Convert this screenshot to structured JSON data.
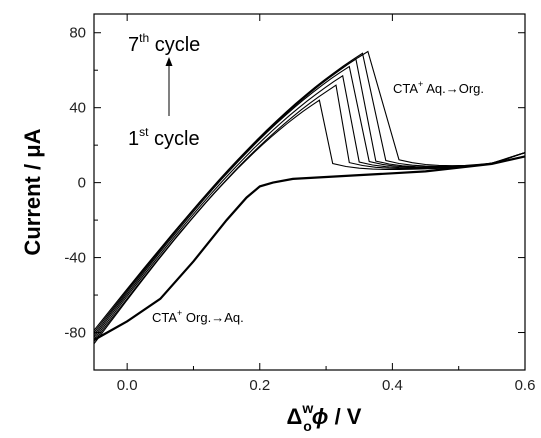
{
  "chart_data": {
    "type": "line",
    "xlabel": {
      "delta": "Δ",
      "sup": "w",
      "sub": "o",
      "phi": "ϕ",
      "rest": " / V"
    },
    "ylabel": "Current / μA",
    "xlim": [
      -0.05,
      0.6
    ],
    "ylim": [
      -100,
      90
    ],
    "x_ticks": [
      0.0,
      0.2,
      0.4,
      0.6
    ],
    "x_tick_labels": [
      "0.0",
      "0.2",
      "0.4",
      "0.6"
    ],
    "y_ticks": [
      -80,
      -40,
      0,
      40,
      80
    ],
    "y_tick_labels": [
      "-80",
      "-40",
      "0",
      "40",
      "80"
    ],
    "grid": false,
    "line_color": "#000000",
    "annotations": {
      "top_cycle": {
        "base": "7",
        "sup": "th",
        "rest": " cycle"
      },
      "bottom_cycle": {
        "base": "1",
        "sup": "st",
        "rest": " cycle"
      },
      "transfer_forward": {
        "pre": "CTA",
        "sup": "+",
        "rest": " Aq.→Org."
      },
      "transfer_reverse": {
        "pre": "CTA",
        "sup": "+",
        "rest": " Org.→Aq."
      }
    },
    "return_sweep": {
      "x": [
        0.6,
        0.55,
        0.5,
        0.45,
        0.4,
        0.35,
        0.3,
        0.25,
        0.22,
        0.2,
        0.18,
        0.15,
        0.1,
        0.05,
        0.0,
        -0.03,
        -0.05
      ],
      "y": [
        14,
        10,
        8,
        6,
        5,
        4,
        3,
        2,
        0,
        -2,
        -8,
        -20,
        -42,
        -62,
        -74,
        -80,
        -84
      ]
    },
    "series": [
      {
        "peak_x": 0.29,
        "peak_y": 44,
        "end_x": 0.31
      },
      {
        "peak_x": 0.315,
        "peak_y": 52,
        "end_x": 0.335
      },
      {
        "peak_x": 0.325,
        "peak_y": 57,
        "end_x": 0.35
      },
      {
        "peak_x": 0.335,
        "peak_y": 62,
        "end_x": 0.365
      },
      {
        "peak_x": 0.345,
        "peak_y": 66,
        "end_x": 0.375
      },
      {
        "peak_x": 0.355,
        "peak_y": 69,
        "end_x": 0.39
      },
      {
        "peak_x": 0.363,
        "peak_y": 70,
        "end_x": 0.41
      }
    ]
  }
}
